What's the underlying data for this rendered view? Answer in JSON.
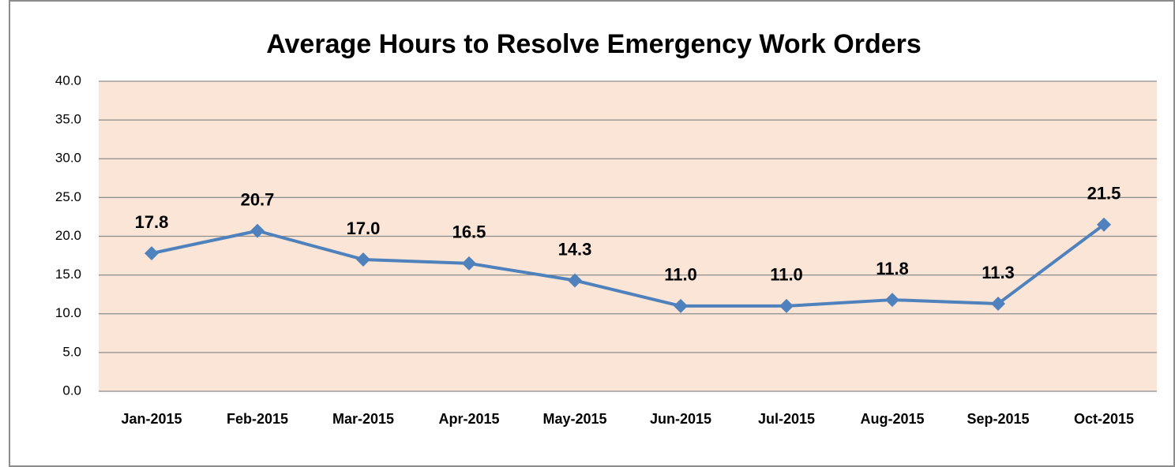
{
  "chart_data": {
    "type": "line",
    "title": "Average Hours to Resolve Emergency Work Orders",
    "categories": [
      "Jan-2015",
      "Feb-2015",
      "Mar-2015",
      "Apr-2015",
      "May-2015",
      "Jun-2015",
      "Jul-2015",
      "Aug-2015",
      "Sep-2015",
      "Oct-2015"
    ],
    "series": [
      {
        "name": "Average Hours",
        "color": "#4f81bd",
        "values": [
          17.8,
          20.7,
          17.0,
          16.5,
          14.3,
          11.0,
          11.0,
          11.8,
          11.3,
          21.5
        ],
        "value_labels": [
          "17.8",
          "20.7",
          "17.0",
          "16.5",
          "14.3",
          "11.0",
          "11.0",
          "11.8",
          "11.3",
          "21.5"
        ]
      }
    ],
    "ylim": [
      0,
      40
    ],
    "yticks": [
      {
        "value": 0,
        "label": "0.0"
      },
      {
        "value": 5,
        "label": "5.0"
      },
      {
        "value": 10,
        "label": "10.0"
      },
      {
        "value": 15,
        "label": "15.0"
      },
      {
        "value": 20,
        "label": "20.0"
      },
      {
        "value": 25,
        "label": "25.0"
      },
      {
        "value": 30,
        "label": "30.0"
      },
      {
        "value": 35,
        "label": "35.0"
      },
      {
        "value": 40,
        "label": "40.0"
      }
    ],
    "grid": true,
    "plot_background": "#fbe5d6"
  }
}
